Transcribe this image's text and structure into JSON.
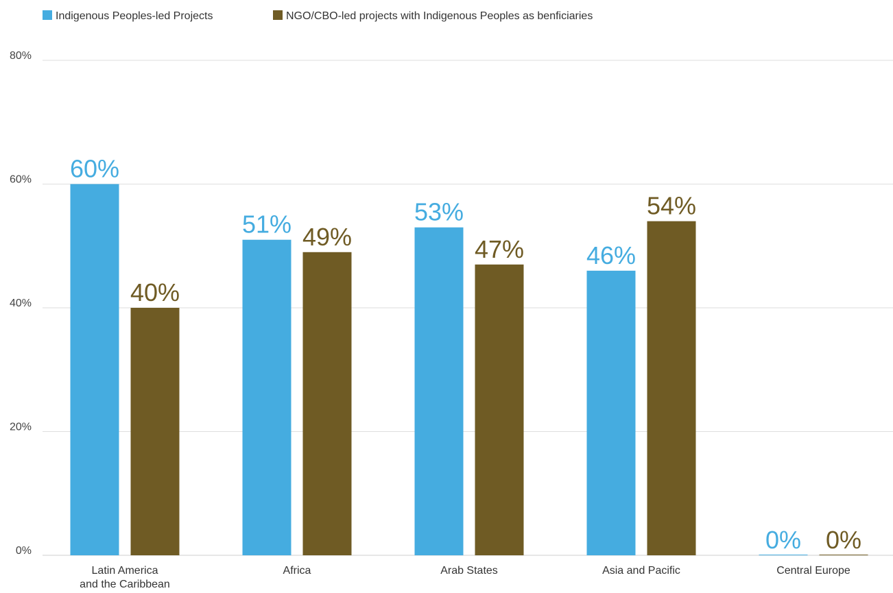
{
  "chart_data": {
    "type": "bar",
    "title": "",
    "xlabel": "",
    "ylabel": "",
    "ylim": [
      0,
      80
    ],
    "yticks": [
      "0%",
      "20%",
      "40%",
      "60%",
      "80%"
    ],
    "ytick_values": [
      0,
      20,
      40,
      60,
      80
    ],
    "grid": true,
    "legend_position": "top-left",
    "categories": [
      [
        "Latin America",
        "and the Caribbean"
      ],
      [
        "Africa"
      ],
      [
        "Arab States"
      ],
      [
        "Asia and Pacific"
      ],
      [
        "Central Europe"
      ]
    ],
    "series": [
      {
        "name": "Indigenous Peoples-led Projects",
        "color": "#45ACE0",
        "values": [
          60,
          51,
          53,
          46,
          0
        ],
        "labels": [
          "60%",
          "51%",
          "53%",
          "46%",
          "0%"
        ]
      },
      {
        "name": "NGO/CBO-led projects with Indigenous Peoples as benficiaries",
        "color": "#6F5B24",
        "values": [
          40,
          49,
          47,
          54,
          0
        ],
        "labels": [
          "40%",
          "49%",
          "47%",
          "54%",
          "0%"
        ]
      }
    ]
  }
}
